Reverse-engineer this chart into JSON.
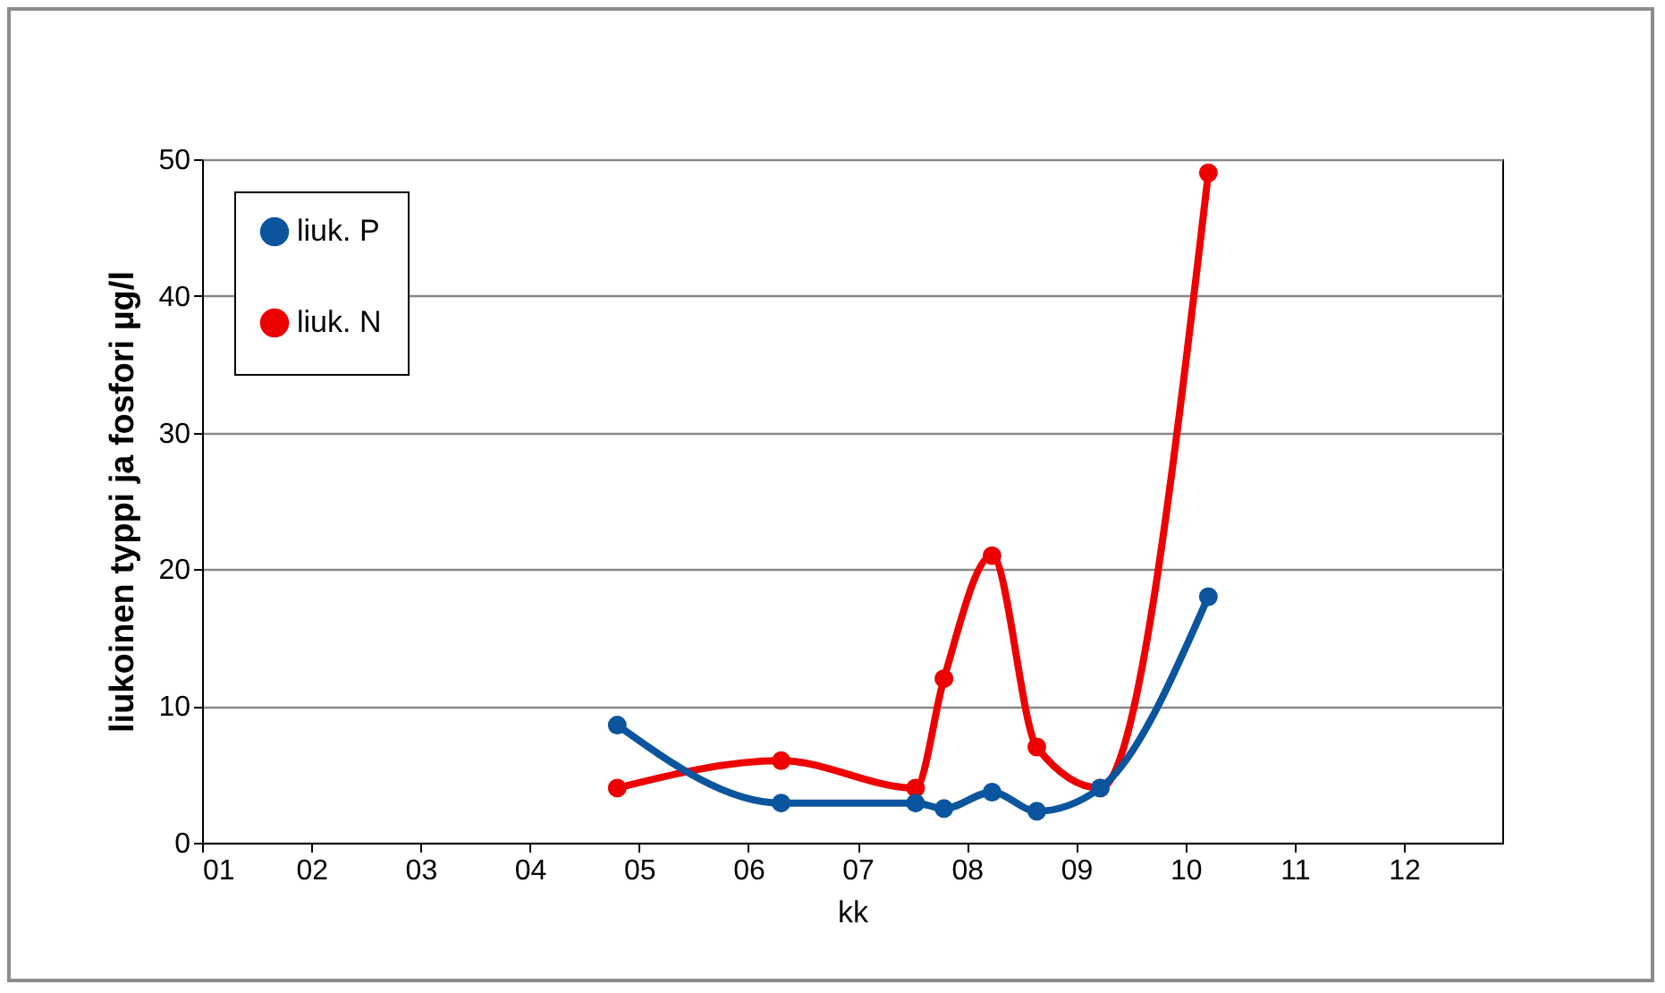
{
  "chart_data": {
    "type": "line",
    "xlabel": "kk",
    "ylabel": "liukoinen typpi ja fosfori µg/l",
    "x": [
      4.8,
      6.3,
      7.53,
      7.79,
      8.23,
      8.64,
      9.22,
      10.21
    ],
    "series": [
      {
        "name": "liuk. P",
        "color": "#0b559f",
        "values": [
          8.6,
          2.9,
          2.9,
          2.5,
          3.7,
          2.3,
          4,
          18
        ]
      },
      {
        "name": "liuk. N",
        "color": "#ee0000",
        "values": [
          4,
          6,
          4,
          12,
          21,
          7,
          4,
          49
        ]
      }
    ],
    "xlim": [
      1,
      12.9
    ],
    "xticks": [
      {
        "value": 1,
        "label": "01"
      },
      {
        "value": 2,
        "label": "02"
      },
      {
        "value": 3,
        "label": "03"
      },
      {
        "value": 4,
        "label": "04"
      },
      {
        "value": 5,
        "label": "05"
      },
      {
        "value": 6,
        "label": "06"
      },
      {
        "value": 7,
        "label": "07"
      },
      {
        "value": 8,
        "label": "08"
      },
      {
        "value": 9,
        "label": "09"
      },
      {
        "value": 10,
        "label": "10"
      },
      {
        "value": 11,
        "label": "11"
      },
      {
        "value": 12,
        "label": "12"
      }
    ],
    "ylim": [
      0,
      50
    ],
    "yticks": [
      0,
      10,
      20,
      30,
      40,
      50
    ],
    "grid": "y",
    "legend": "top left",
    "marker": "circle",
    "line_style": "solid"
  }
}
